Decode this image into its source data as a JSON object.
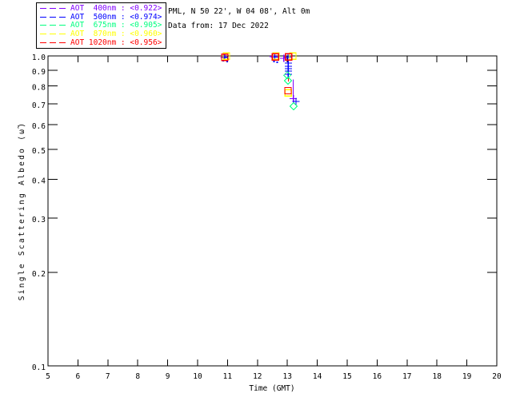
{
  "header": {
    "line1": "PML, N 50 22', W 04 08', Alt 0m",
    "line2": "Data from: 17 Dec 2022"
  },
  "chart_data": {
    "type": "scatter",
    "xlabel": "Time (GMT)",
    "ylabel": "Single Scattering Albedo (ω̃)",
    "xlim": [
      5,
      20
    ],
    "ylim": [
      0.1,
      1.0
    ],
    "yscale": "log",
    "xticks": [
      5,
      6,
      7,
      8,
      9,
      10,
      11,
      12,
      13,
      14,
      15,
      16,
      17,
      18,
      19,
      20
    ],
    "yticks": [
      1.0,
      0.9,
      0.8,
      0.7,
      0.6,
      0.5,
      0.4,
      0.3,
      0.2,
      0.1
    ],
    "grid": false,
    "legend_position": "top-left",
    "series": [
      {
        "name": "AOT 400nm",
        "legend": "AOT  400nm : <0.922>",
        "color": "#8000ff",
        "marker": "plus",
        "points": [
          [
            10.88,
            0.988
          ],
          [
            12.53,
            0.996
          ],
          [
            12.88,
            0.982
          ],
          [
            13.2,
            0.728
          ]
        ],
        "dots": []
      },
      {
        "name": "AOT 500nm",
        "legend": "AOT  500nm : <0.974>",
        "color": "#0000ff",
        "marker": "plus",
        "points": [
          [
            10.91,
            0.99
          ],
          [
            12.58,
            0.991
          ],
          [
            13.02,
            0.991
          ],
          [
            13.03,
            0.948
          ],
          [
            13.03,
            0.926
          ],
          [
            13.03,
            0.909
          ],
          [
            13.03,
            0.893
          ],
          [
            13.03,
            0.872
          ],
          [
            13.29,
            0.713
          ]
        ],
        "dots": [
          [
            10.85,
            0.966
          ],
          [
            10.99,
            0.96
          ],
          [
            12.55,
            0.959
          ],
          [
            12.66,
            0.953
          ]
        ]
      },
      {
        "name": "AOT 675nm",
        "legend": "AOT  675nm : <0.905>",
        "color": "#00ff7f",
        "marker": "diamond",
        "points": [
          [
            13.0,
            0.867
          ],
          [
            13.02,
            0.832
          ],
          [
            13.21,
            0.688
          ]
        ],
        "dots": []
      },
      {
        "name": "AOT 870nm",
        "legend": "AOT  870nm : <0.960>",
        "color": "#ffff00",
        "marker": "square",
        "points": [
          [
            10.96,
            0.999
          ],
          [
            12.62,
            0.999
          ],
          [
            13.18,
            0.999
          ],
          [
            13.03,
            0.76
          ]
        ],
        "dots": []
      },
      {
        "name": "AOT 1020nm",
        "legend": "AOT 1020nm : <0.956>",
        "color": "#ff0000",
        "marker": "square",
        "points": [
          [
            10.91,
            0.99
          ],
          [
            12.6,
            0.993
          ],
          [
            13.04,
            0.993
          ],
          [
            13.02,
            0.772
          ]
        ],
        "dots": []
      }
    ],
    "segments": [
      {
        "color": "#ff0000",
        "x": 13.04,
        "y1": 0.971,
        "y2": 0.827
      },
      {
        "color": "#8000ff",
        "x": 13.2,
        "y1": 0.84,
        "y2": 0.728
      }
    ]
  }
}
